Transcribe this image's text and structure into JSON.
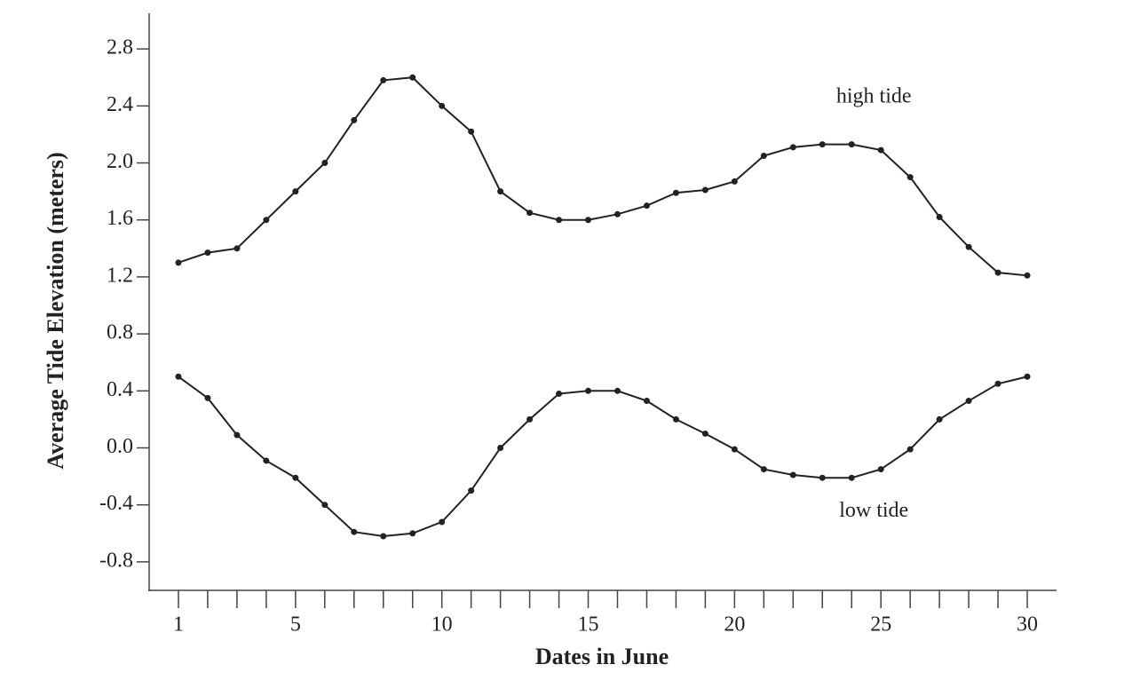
{
  "chart_data": {
    "type": "line",
    "xlabel": "Dates in June",
    "ylabel": "Average Tide Elevation (meters)",
    "x": [
      1,
      2,
      3,
      4,
      5,
      6,
      7,
      8,
      9,
      10,
      11,
      12,
      13,
      14,
      15,
      16,
      17,
      18,
      19,
      20,
      21,
      22,
      23,
      24,
      25,
      26,
      27,
      28,
      29,
      30
    ],
    "series": [
      {
        "name": "high tide",
        "color": "#222222",
        "values": [
          1.3,
          1.37,
          1.4,
          1.6,
          1.8,
          2.0,
          2.3,
          2.58,
          2.6,
          2.4,
          2.22,
          1.8,
          1.65,
          1.6,
          1.6,
          1.64,
          1.7,
          1.79,
          1.81,
          1.87,
          2.05,
          2.11,
          2.13,
          2.13,
          2.09,
          1.9,
          1.62,
          1.41,
          1.23,
          1.21
        ]
      },
      {
        "name": "low tide",
        "color": "#222222",
        "values": [
          0.5,
          0.35,
          0.09,
          -0.09,
          -0.21,
          -0.4,
          -0.59,
          -0.62,
          -0.6,
          -0.52,
          -0.3,
          0.0,
          0.2,
          0.38,
          0.4,
          0.4,
          0.33,
          0.2,
          0.1,
          -0.01,
          -0.15,
          -0.19,
          -0.21,
          -0.21,
          -0.15,
          -0.01,
          0.2,
          0.33,
          0.45,
          0.5
        ]
      }
    ],
    "xlim": [
      0,
      31
    ],
    "xticks": [
      1,
      5,
      10,
      15,
      20,
      25,
      30
    ],
    "xminorticks": [
      2,
      3,
      4,
      6,
      7,
      8,
      9,
      11,
      12,
      13,
      14,
      16,
      17,
      18,
      19,
      21,
      22,
      23,
      24,
      26,
      27,
      28,
      29
    ],
    "ylim": [
      -1,
      3.05
    ],
    "yticks": [
      {
        "value": -0.8,
        "label": "-0.8"
      },
      -0.4,
      {
        "value": 0,
        "label": "0.0"
      },
      0.4,
      0.8,
      1.2,
      1.6,
      {
        "value": 2,
        "label": "2.0"
      },
      2.4,
      2.8
    ],
    "markers": true
  }
}
